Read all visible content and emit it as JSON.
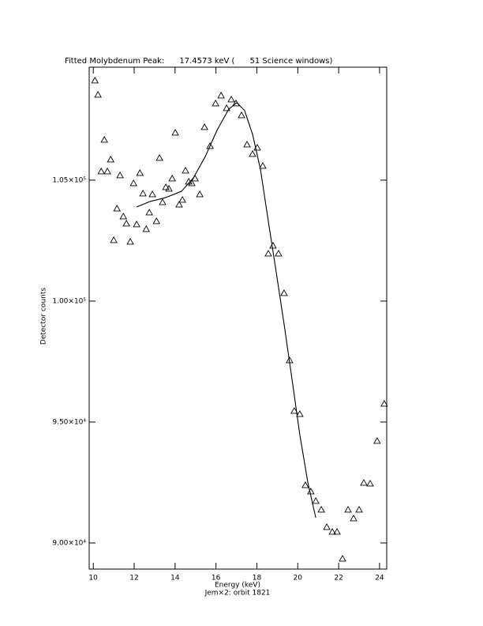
{
  "chart_data": {
    "type": "scatter",
    "title": "Fitted Molybdenum Peak:      17.4573 keV (      51 Science windows)",
    "x_label": "Energy (keV)",
    "subtitle": "Jem×2: orbit 1821",
    "y_label": "Detector counts",
    "xlim": [
      9.8,
      24.35
    ],
    "ylim": [
      88920,
      109670
    ],
    "xticks": [
      10,
      12,
      14,
      16,
      18,
      20,
      22,
      24
    ],
    "yticks": [
      {
        "value": 90000,
        "label": "9.00×10⁴"
      },
      {
        "value": 95000,
        "label": "9.50×10⁴"
      },
      {
        "value": 100000,
        "label": "1.00×10⁵"
      },
      {
        "value": 105000,
        "label": "1.05×10⁵"
      }
    ],
    "series": [
      {
        "marker": "triangle",
        "color": "#000000",
        "x": [
          10.08,
          10.23,
          10.54,
          10.39,
          10.69,
          10.85,
          11.0,
          11.16,
          11.31,
          11.47,
          11.62,
          11.81,
          11.97,
          12.12,
          12.28,
          12.43,
          12.59,
          12.74,
          12.89,
          13.09,
          13.24,
          13.39,
          13.55,
          13.7,
          13.86,
          14.01,
          14.2,
          14.36,
          14.51,
          14.67,
          14.82,
          14.98,
          15.21,
          15.44,
          15.71,
          15.98,
          16.25,
          16.52,
          16.75,
          16.98,
          17.25,
          17.52,
          17.79,
          18.02,
          18.29,
          18.56,
          18.79,
          19.06,
          19.33,
          19.6,
          19.83,
          20.1,
          20.37,
          20.64,
          20.88,
          21.15,
          21.42,
          21.69,
          21.92,
          22.19,
          22.46,
          22.73,
          23.0,
          23.23,
          23.54,
          23.88,
          24.23
        ],
        "values": [
          109118,
          108529,
          106667,
          105359,
          105359,
          105850,
          102516,
          103824,
          105196,
          103497,
          103203,
          102451,
          104869,
          103170,
          105294,
          104444,
          102974,
          103660,
          104412,
          103301,
          105915,
          104085,
          104706,
          104641,
          105065,
          106961,
          103987,
          104183,
          105392,
          104935,
          104869,
          105065,
          104412,
          107190,
          106405,
          108170,
          108497,
          107974,
          108333,
          108170,
          107680,
          106471,
          106078,
          106340,
          105588,
          101961,
          102288,
          101961,
          100327,
          97549,
          95458,
          95327,
          92386,
          92124,
          91732,
          91373,
          90654,
          90458,
          90458,
          89346,
          91373,
          91013,
          91373,
          92484,
          92451,
          94216,
          95752
        ]
      },
      {
        "marker": "line",
        "color": "#000000",
        "x": [
          12.12,
          12.78,
          13.55,
          14.32,
          14.9,
          15.48,
          16.05,
          16.63,
          17.02,
          17.4,
          17.79,
          18.18,
          18.56,
          18.95,
          19.33,
          19.72,
          20.1,
          20.49,
          20.88
        ],
        "values": [
          103889,
          104118,
          104281,
          104542,
          105098,
          105980,
          107059,
          107941,
          108203,
          107876,
          106895,
          105425,
          103301,
          101176,
          99052,
          96765,
          94477,
          92516,
          91046
        ]
      }
    ]
  }
}
